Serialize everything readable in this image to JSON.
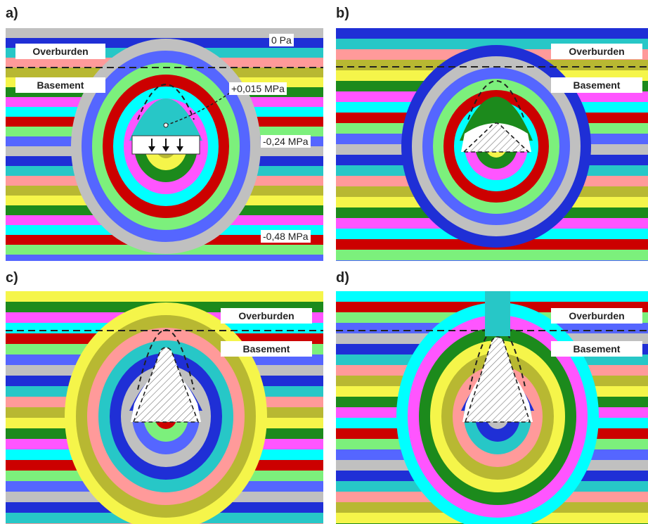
{
  "panels": [
    {
      "label": "a)",
      "overburden_label": "Overburden",
      "basement_label": "Basement",
      "annotations": [
        "0 Pa",
        "+0,015 MPa",
        "-0,24 MPa",
        "-0,48 MPa"
      ]
    },
    {
      "label": "b)",
      "overburden_label": "Overburden",
      "basement_label": "Basement"
    },
    {
      "label": "c)",
      "overburden_label": "Overburden",
      "basement_label": "Basement"
    },
    {
      "label": "d)",
      "overburden_label": "Overburden",
      "basement_label": "Basement"
    }
  ],
  "palette": [
    "#c0c0c0",
    "#1f2fd6",
    "#27c7c7",
    "#ff9a9a",
    "#b8b832",
    "#f5f54a",
    "#1c8a1c",
    "#ff55ff",
    "#00ffff",
    "#cc0000",
    "#7cf07c",
    "#5566ff"
  ],
  "icons": [
    "down-arrow-icon"
  ]
}
